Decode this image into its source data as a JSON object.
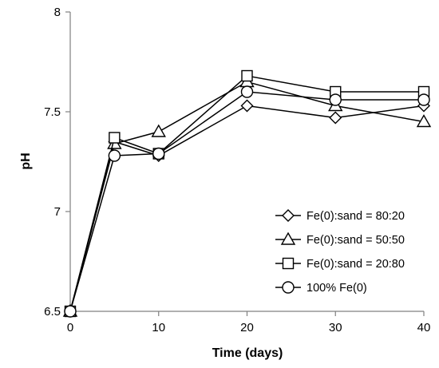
{
  "chart_data": {
    "type": "line",
    "title": "",
    "xlabel": "Time (days)",
    "ylabel": "pH",
    "xlim": [
      0,
      40
    ],
    "ylim": [
      6.5,
      8
    ],
    "xticks": [
      0,
      10,
      20,
      30,
      40
    ],
    "yticks": [
      6.5,
      7,
      7.5,
      8
    ],
    "ytick_labels": [
      "6.5",
      "7",
      "7.5",
      "8"
    ],
    "grid": false,
    "legend_position": "bottom-right",
    "series": [
      {
        "name": "Fe(0):sand = 80:20",
        "marker": "diamond",
        "x": [
          0,
          5,
          10,
          20,
          30,
          40
        ],
        "y": [
          6.5,
          7.35,
          7.28,
          7.53,
          7.47,
          7.53
        ]
      },
      {
        "name": "Fe(0):sand = 50:50",
        "marker": "triangle",
        "x": [
          0,
          5,
          10,
          20,
          30,
          40
        ],
        "y": [
          6.5,
          7.34,
          7.4,
          7.65,
          7.53,
          7.45
        ]
      },
      {
        "name": "Fe(0):sand = 20:80",
        "marker": "square",
        "x": [
          0,
          5,
          10,
          20,
          30,
          40
        ],
        "y": [
          6.5,
          7.37,
          7.29,
          7.68,
          7.6,
          7.6
        ]
      },
      {
        "name": "100% Fe(0)",
        "marker": "circle",
        "x": [
          0,
          5,
          10,
          20,
          30,
          40
        ],
        "y": [
          6.5,
          7.28,
          7.29,
          7.6,
          7.56,
          7.56
        ]
      }
    ],
    "colors": {
      "line": "#000000",
      "marker_fill": "#ffffff",
      "axis": "#808080"
    }
  }
}
